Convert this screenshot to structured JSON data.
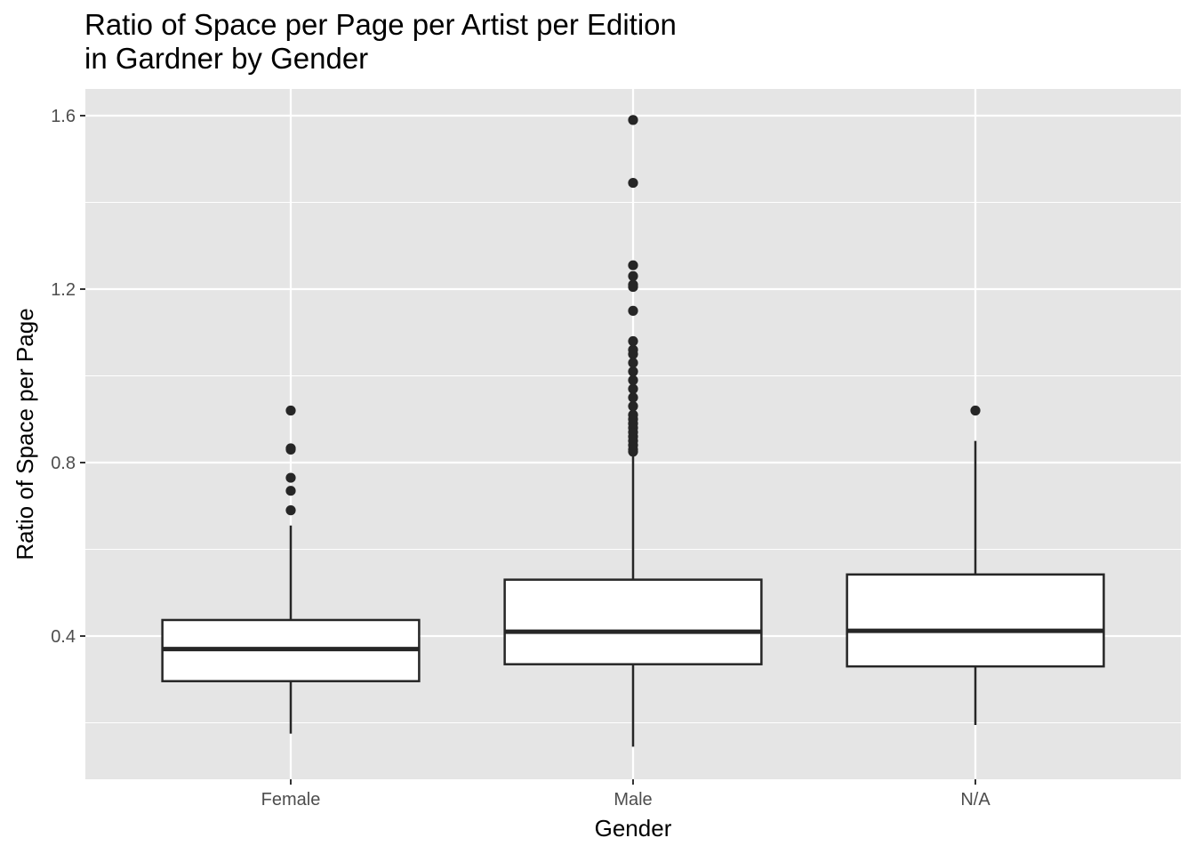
{
  "chart_data": {
    "type": "boxplot",
    "title": [
      "Ratio of Space per Page per Artist per Edition",
      "in Gardner by Gender"
    ],
    "xlabel": "Gender",
    "ylabel": "Ratio of Space per Page",
    "categories": [
      "Female",
      "Male",
      "N/A"
    ],
    "ylim": [
      0.07,
      1.66
    ],
    "yticks": [
      0.4,
      0.8,
      1.2,
      1.6
    ],
    "yticklabels": [
      "0.4",
      "0.8",
      "1.2",
      "1.6"
    ],
    "grid": true,
    "legend": "none",
    "colors": {
      "panel": "#e5e5e5",
      "grid": "#ffffff",
      "box_fill": "#ffffff",
      "box_stroke": "#262626",
      "outlier": "#262626"
    },
    "boxes": [
      {
        "category": "Female",
        "lower_whisker": 0.175,
        "q1": 0.296,
        "median": 0.37,
        "q3": 0.437,
        "upper_whisker": 0.655,
        "outliers": [
          0.69,
          0.735,
          0.765,
          0.83,
          0.833,
          0.92
        ]
      },
      {
        "category": "Male",
        "lower_whisker": 0.145,
        "q1": 0.335,
        "median": 0.41,
        "q3": 0.53,
        "upper_whisker": 0.82,
        "outliers": [
          0.825,
          0.83,
          0.84,
          0.85,
          0.86,
          0.87,
          0.88,
          0.89,
          0.9,
          0.91,
          0.93,
          0.95,
          0.97,
          0.99,
          1.01,
          1.03,
          1.05,
          1.06,
          1.08,
          1.15,
          1.205,
          1.21,
          1.23,
          1.255,
          1.445,
          1.59
        ]
      },
      {
        "category": "N/A",
        "lower_whisker": 0.195,
        "q1": 0.33,
        "median": 0.412,
        "q3": 0.542,
        "upper_whisker": 0.85,
        "outliers": [
          0.92
        ]
      }
    ]
  }
}
